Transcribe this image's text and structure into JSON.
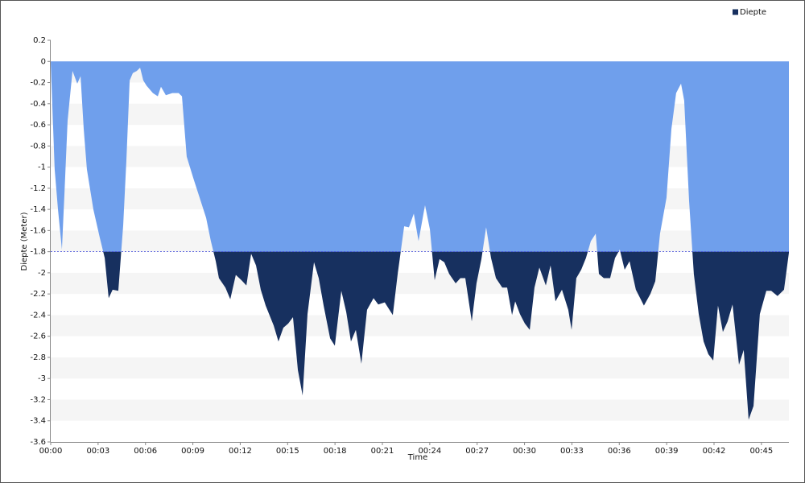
{
  "chart_data": {
    "type": "area",
    "x_label": "Time",
    "y_label": "Diepte (Meter)",
    "x": [
      0.0,
      0.25,
      0.46,
      0.71,
      0.87,
      1.07,
      1.38,
      1.68,
      1.89,
      2.09,
      2.29,
      2.7,
      3.11,
      3.42,
      3.67,
      3.92,
      4.28,
      4.59,
      4.79,
      5.0,
      5.2,
      5.45,
      5.66,
      5.86,
      6.07,
      6.47,
      6.78,
      6.98,
      7.29,
      7.7,
      8.1,
      8.31,
      8.61,
      9.02,
      9.43,
      9.84,
      10.14,
      10.45,
      10.65,
      11.06,
      11.37,
      11.72,
      12.08,
      12.39,
      12.69,
      13.0,
      13.3,
      13.61,
      14.12,
      14.42,
      14.73,
      15.04,
      15.34,
      15.65,
      15.95,
      16.26,
      16.67,
      16.97,
      17.28,
      17.69,
      17.99,
      18.4,
      18.71,
      19.01,
      19.32,
      19.67,
      20.03,
      20.44,
      20.74,
      21.15,
      21.66,
      21.97,
      22.38,
      22.68,
      22.99,
      23.29,
      23.7,
      24.01,
      24.31,
      24.62,
      24.92,
      25.23,
      25.64,
      25.94,
      26.25,
      26.66,
      26.96,
      27.27,
      27.57,
      27.88,
      28.19,
      28.59,
      28.9,
      29.21,
      29.41,
      29.71,
      30.02,
      30.33,
      30.63,
      30.94,
      31.35,
      31.65,
      31.96,
      32.37,
      32.77,
      32.98,
      33.28,
      33.59,
      33.89,
      34.2,
      34.51,
      34.71,
      35.02,
      35.42,
      35.73,
      36.03,
      36.34,
      36.65,
      37.05,
      37.56,
      37.97,
      38.28,
      38.58,
      38.99,
      39.3,
      39.6,
      39.91,
      40.11,
      40.42,
      40.72,
      41.03,
      41.34,
      41.64,
      41.95,
      42.25,
      42.56,
      42.86,
      43.17,
      43.58,
      43.88,
      44.19,
      44.5,
      44.9,
      45.31,
      45.62,
      46.02,
      46.43,
      46.74
    ],
    "series": [
      {
        "name": "Diepte",
        "color": "#17305f",
        "threshold_color": "#6f9fec",
        "values": [
          0,
          -1.02,
          -1.4,
          -1.78,
          -1.25,
          -0.56,
          -0.09,
          -0.21,
          -0.14,
          -0.64,
          -1.02,
          -1.4,
          -1.67,
          -1.86,
          -2.24,
          -2.16,
          -2.17,
          -1.55,
          -0.94,
          -0.18,
          -0.11,
          -0.09,
          -0.06,
          -0.18,
          -0.23,
          -0.3,
          -0.33,
          -0.24,
          -0.32,
          -0.3,
          -0.3,
          -0.33,
          -0.9,
          -1.1,
          -1.29,
          -1.48,
          -1.7,
          -1.89,
          -2.05,
          -2.14,
          -2.25,
          -2.02,
          -2.07,
          -2.12,
          -1.82,
          -1.93,
          -2.16,
          -2.31,
          -2.5,
          -2.65,
          -2.52,
          -2.48,
          -2.42,
          -2.92,
          -3.16,
          -2.39,
          -1.9,
          -2.05,
          -2.31,
          -2.62,
          -2.69,
          -2.17,
          -2.37,
          -2.65,
          -2.54,
          -2.86,
          -2.35,
          -2.24,
          -2.3,
          -2.28,
          -2.4,
          -2.01,
          -1.56,
          -1.57,
          -1.44,
          -1.7,
          -1.36,
          -1.59,
          -2.07,
          -1.87,
          -1.9,
          -2.01,
          -2.1,
          -2.05,
          -2.05,
          -2.46,
          -2.1,
          -1.87,
          -1.57,
          -1.86,
          -2.05,
          -2.14,
          -2.14,
          -2.4,
          -2.27,
          -2.39,
          -2.48,
          -2.54,
          -2.14,
          -1.95,
          -2.12,
          -1.93,
          -2.27,
          -2.16,
          -2.35,
          -2.54,
          -2.05,
          -1.97,
          -1.86,
          -1.7,
          -1.63,
          -2.01,
          -2.05,
          -2.05,
          -1.86,
          -1.78,
          -1.97,
          -1.89,
          -2.16,
          -2.31,
          -2.2,
          -2.08,
          -1.63,
          -1.29,
          -0.64,
          -0.3,
          -0.21,
          -0.37,
          -1.32,
          -2.01,
          -2.39,
          -2.65,
          -2.77,
          -2.83,
          -2.31,
          -2.56,
          -2.46,
          -2.3,
          -2.87,
          -2.73,
          -3.39,
          -3.26,
          -2.39,
          -2.17,
          -2.17,
          -2.22,
          -2.16,
          -1.81
        ]
      }
    ],
    "threshold": -1.8,
    "threshold_line_color": "#3a44d8",
    "xlim": [
      0,
      46.74
    ],
    "xticks": [
      {
        "value": 0,
        "label": "00:00"
      },
      {
        "value": 3,
        "label": "00:03"
      },
      {
        "value": 6,
        "label": "00:06"
      },
      {
        "value": 9,
        "label": "00:09"
      },
      {
        "value": 12,
        "label": "00:12"
      },
      {
        "value": 15,
        "label": "00:15"
      },
      {
        "value": 18,
        "label": "00:18"
      },
      {
        "value": 21,
        "label": "00:21"
      },
      {
        "value": 24,
        "label": "00:24"
      },
      {
        "value": 27,
        "label": "00:27"
      },
      {
        "value": 30,
        "label": "00:30"
      },
      {
        "value": 33,
        "label": "00:33"
      },
      {
        "value": 36,
        "label": "00:36"
      },
      {
        "value": 39,
        "label": "00:39"
      },
      {
        "value": 42,
        "label": "00:42"
      },
      {
        "value": 45,
        "label": "00:45"
      }
    ],
    "ylim": [
      -3.6,
      0.2
    ],
    "yticks": [
      -3.6,
      -3.4,
      -3.2,
      -3,
      -2.8,
      -2.6,
      -2.4,
      -2.2,
      -2,
      -1.8,
      -1.6,
      -1.4,
      -1.2,
      -1,
      -0.8,
      -0.6,
      -0.4,
      -0.2,
      0,
      0.2
    ],
    "banded_grid": true,
    "legend": "top-right"
  }
}
